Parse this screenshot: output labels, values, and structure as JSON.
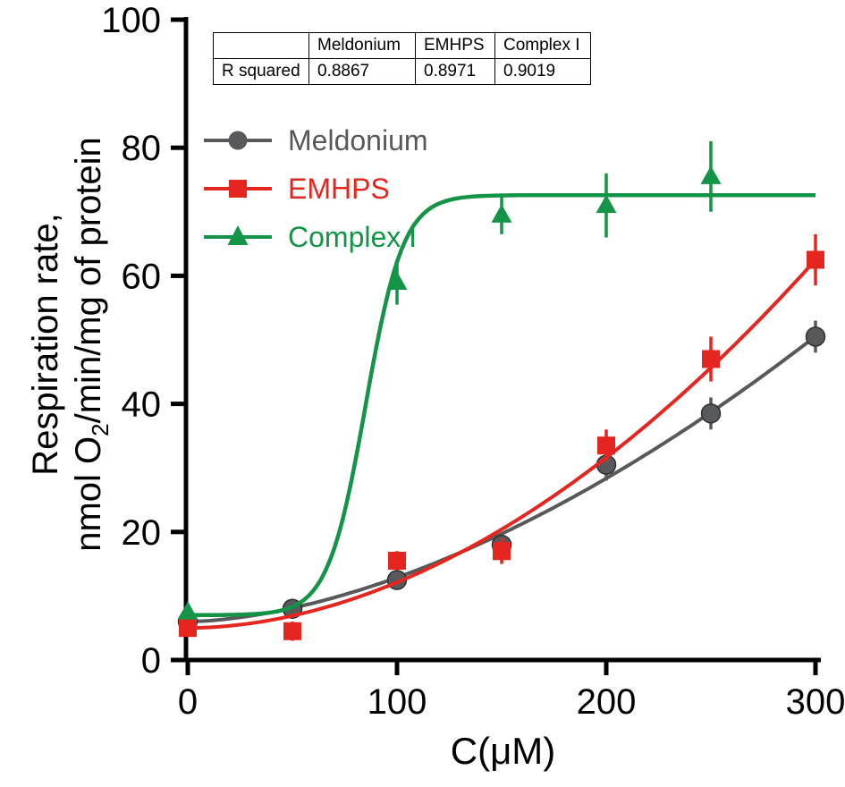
{
  "chart_data": {
    "type": "scatter",
    "title": "",
    "xlabel": "C(μM)",
    "ylabel_line1": "Respiration rate,",
    "ylabel_line2": {
      "pre": "nmol O",
      "sub": "2",
      "post": "/min/mg of protein"
    },
    "xlim": [
      0,
      300
    ],
    "ylim": [
      0,
      100
    ],
    "xticks": [
      0,
      100,
      200,
      300
    ],
    "yticks": [
      0,
      20,
      40,
      60,
      80,
      100
    ],
    "grid": false,
    "legend_position": "upper-left-inside",
    "series": [
      {
        "name": "Meldonium",
        "color": "#58595b",
        "marker": "circle",
        "x": [
          0,
          50,
          100,
          150,
          200,
          250,
          300
        ],
        "y": [
          6,
          8,
          12.5,
          18,
          30.5,
          38.5,
          50.5
        ],
        "err": [
          1,
          1,
          1,
          2,
          2.5,
          2.5,
          2.5
        ],
        "fit": {
          "type": "power",
          "y0": 6,
          "a": 0.00274,
          "p": 1.7
        }
      },
      {
        "name": "EMHPS",
        "color": "#e5251f",
        "marker": "square",
        "x": [
          0,
          50,
          100,
          150,
          200,
          250,
          300
        ],
        "y": [
          5,
          4.5,
          15.5,
          17,
          33.5,
          47,
          62.5
        ],
        "err": [
          1,
          1.5,
          1.5,
          2,
          2.5,
          3.5,
          4
        ],
        "fit": {
          "type": "power",
          "y0": 5,
          "a": 0.00113,
          "p": 1.9
        }
      },
      {
        "name": "Complex I",
        "color": "#149447",
        "marker": "triangle",
        "x": [
          0,
          100,
          150,
          200,
          250
        ],
        "y": [
          7.5,
          59,
          69.5,
          71,
          75.5
        ],
        "err": [
          1,
          3.5,
          3,
          5,
          5.5
        ],
        "fit": {
          "type": "logistic",
          "bottom": 7,
          "top": 72.6,
          "x0": 85,
          "k": 9
        }
      }
    ],
    "r_squared_table": {
      "header": [
        "",
        "Meldonium",
        "EMHPS",
        "Complex I"
      ],
      "row_label": "R squared",
      "values": [
        "0.8867",
        "0.8971",
        "0.9019"
      ]
    }
  }
}
